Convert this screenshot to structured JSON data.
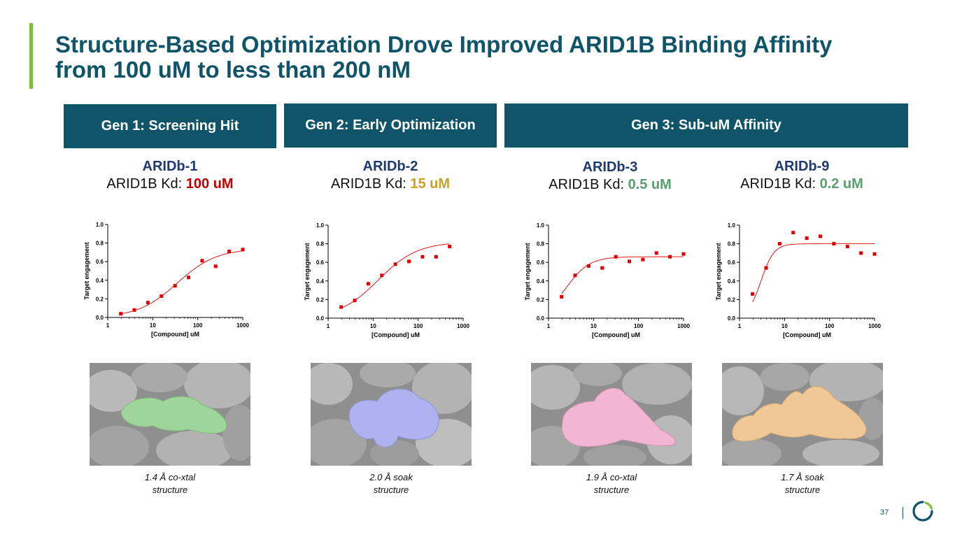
{
  "title_line1": "Structure-Based Optimization Drove Improved ARID1B Binding Affinity",
  "title_line2": "from 100 uM to less than 200 nM",
  "generations": {
    "gen1": "Gen 1: Screening Hit",
    "gen2": "Gen 2: Early Optimization",
    "gen3": "Gen 3: Sub-uM Affinity"
  },
  "compounds": [
    {
      "name": "ARIDb-1",
      "kd_prefix": "ARID1B Kd: ",
      "kd_value": "100 uM",
      "kd_color": "#c00000",
      "caption_line1": "1.4 Å co-xtal",
      "caption_line2": "structure",
      "ligand_color": "#9fd59a"
    },
    {
      "name": "ARIDb-2",
      "kd_prefix": "ARID1B Kd: ",
      "kd_value": "15 uM",
      "kd_color": "#c9a227",
      "caption_line1": "2.0 Å soak",
      "caption_line2": "structure",
      "ligand_color": "#aeb2ee"
    },
    {
      "name": "ARIDb-3",
      "kd_prefix": "ARID1B Kd: ",
      "kd_value": "0.5 uM",
      "kd_color": "#5b9e6e",
      "caption_line1": "1.9 Å co-xtal",
      "caption_line2": "structure",
      "ligand_color": "#f1b6d3"
    },
    {
      "name": "ARIDb-9",
      "kd_prefix": "ARID1B Kd: ",
      "kd_value": "0.2 uM",
      "kd_color": "#5b9e6e",
      "caption_line1": "1.7 Å soak",
      "caption_line2": "structure",
      "ligand_color": "#f0c897"
    }
  ],
  "chart_data": [
    {
      "type": "scatter",
      "xscale": "log",
      "xlim": [
        1,
        1000
      ],
      "ylim": [
        0,
        1.0
      ],
      "xticks": [
        "1",
        "10",
        "100",
        "1000"
      ],
      "yticks": [
        "0.0",
        "0.2",
        "0.4",
        "0.6",
        "0.8",
        "1.0"
      ],
      "xlabel": "[Compound] uM",
      "ylabel": "Target engagement",
      "marker_color": "#e00000",
      "fit_color": "#e00000",
      "x": [
        1.95,
        3.9,
        7.8,
        15.6,
        31.25,
        62.5,
        125,
        250,
        500,
        1000
      ],
      "y": [
        0.04,
        0.08,
        0.16,
        0.23,
        0.34,
        0.43,
        0.61,
        0.55,
        0.71,
        0.73
      ],
      "fit": {
        "bottom": 0.0,
        "top": 0.74,
        "ec50": 35,
        "hill": 1.0
      }
    },
    {
      "type": "scatter",
      "xscale": "log",
      "xlim": [
        1,
        1000
      ],
      "ylim": [
        0,
        1.0
      ],
      "xticks": [
        "1",
        "10",
        "100",
        "1000"
      ],
      "yticks": [
        "0.0",
        "0.2",
        "0.4",
        "0.6",
        "0.8",
        "1.0"
      ],
      "xlabel": "[Compound] uM",
      "ylabel": "Target engagement",
      "marker_color": "#e00000",
      "fit_color": "#e00000",
      "x": [
        1.95,
        3.9,
        7.8,
        15.6,
        31.25,
        62.5,
        125,
        250,
        500
      ],
      "y": [
        0.12,
        0.19,
        0.37,
        0.46,
        0.58,
        0.61,
        0.66,
        0.66,
        0.77
      ],
      "fit": {
        "bottom": 0.0,
        "top": 0.82,
        "ec50": 13,
        "hill": 1.0
      }
    },
    {
      "type": "scatter",
      "xscale": "log",
      "xlim": [
        1,
        1000
      ],
      "ylim": [
        0,
        1.0
      ],
      "xticks": [
        "1",
        "10",
        "100",
        "1000"
      ],
      "yticks": [
        "0.0",
        "0.2",
        "0.4",
        "0.6",
        "0.8",
        "1.0"
      ],
      "xlabel": "[Compound] uM",
      "ylabel": "Target engagement",
      "marker_color": "#e00000",
      "fit_color": "#e00000",
      "x": [
        1.95,
        3.9,
        7.8,
        15.6,
        31.25,
        62.5,
        125,
        250,
        500,
        1000
      ],
      "y": [
        0.23,
        0.46,
        0.56,
        0.54,
        0.66,
        0.61,
        0.63,
        0.7,
        0.66,
        0.69
      ],
      "fit": {
        "bottom": 0.0,
        "top": 0.66,
        "ec50": 2.5,
        "hill": 1.7
      }
    },
    {
      "type": "scatter",
      "xscale": "log",
      "xlim": [
        1,
        1000
      ],
      "ylim": [
        0,
        1.0
      ],
      "xticks": [
        "1",
        "10",
        "100",
        "1000"
      ],
      "yticks": [
        "0.0",
        "0.2",
        "0.4",
        "0.6",
        "0.8",
        "1.0"
      ],
      "xlabel": "[Compound] uM",
      "ylabel": "Target engagement",
      "marker_color": "#e00000",
      "fit_color": "#e00000",
      "x": [
        1.95,
        3.9,
        7.8,
        15.6,
        31.25,
        62.5,
        125,
        250,
        500,
        1000
      ],
      "y": [
        0.26,
        0.54,
        0.8,
        0.92,
        0.86,
        0.88,
        0.8,
        0.77,
        0.7,
        0.69
      ],
      "fit": {
        "bottom": 0.0,
        "top": 0.8,
        "ec50": 3.0,
        "hill": 3.0
      }
    }
  ],
  "footer": {
    "page_number": "37"
  }
}
